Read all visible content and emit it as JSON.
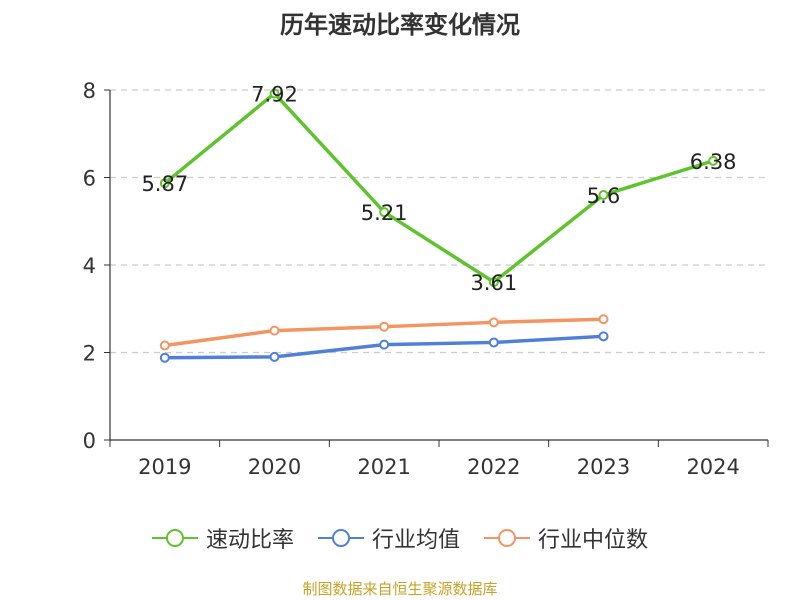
{
  "chart_data": {
    "type": "line",
    "title": "历年速动比率变化情况",
    "categories": [
      "2019",
      "2020",
      "2021",
      "2022",
      "2023",
      "2024"
    ],
    "ylim": [
      0,
      8
    ],
    "yticks": [
      0,
      2,
      4,
      6,
      8
    ],
    "grid": true,
    "legend_position": "bottom",
    "series": [
      {
        "name": "速动比率",
        "color": "#5fc32b",
        "values": [
          5.87,
          7.92,
          5.21,
          3.61,
          5.6,
          6.38
        ],
        "labels": true
      },
      {
        "name": "行业均值",
        "color": "#4f7fd9",
        "values": [
          1.88,
          1.9,
          2.18,
          2.23,
          2.37,
          null
        ],
        "labels": false
      },
      {
        "name": "行业中位数",
        "color": "#f49460",
        "values": [
          2.16,
          2.5,
          2.59,
          2.69,
          2.76,
          null
        ],
        "labels": false
      }
    ]
  },
  "source": "制图数据来自恒生聚源数据库"
}
